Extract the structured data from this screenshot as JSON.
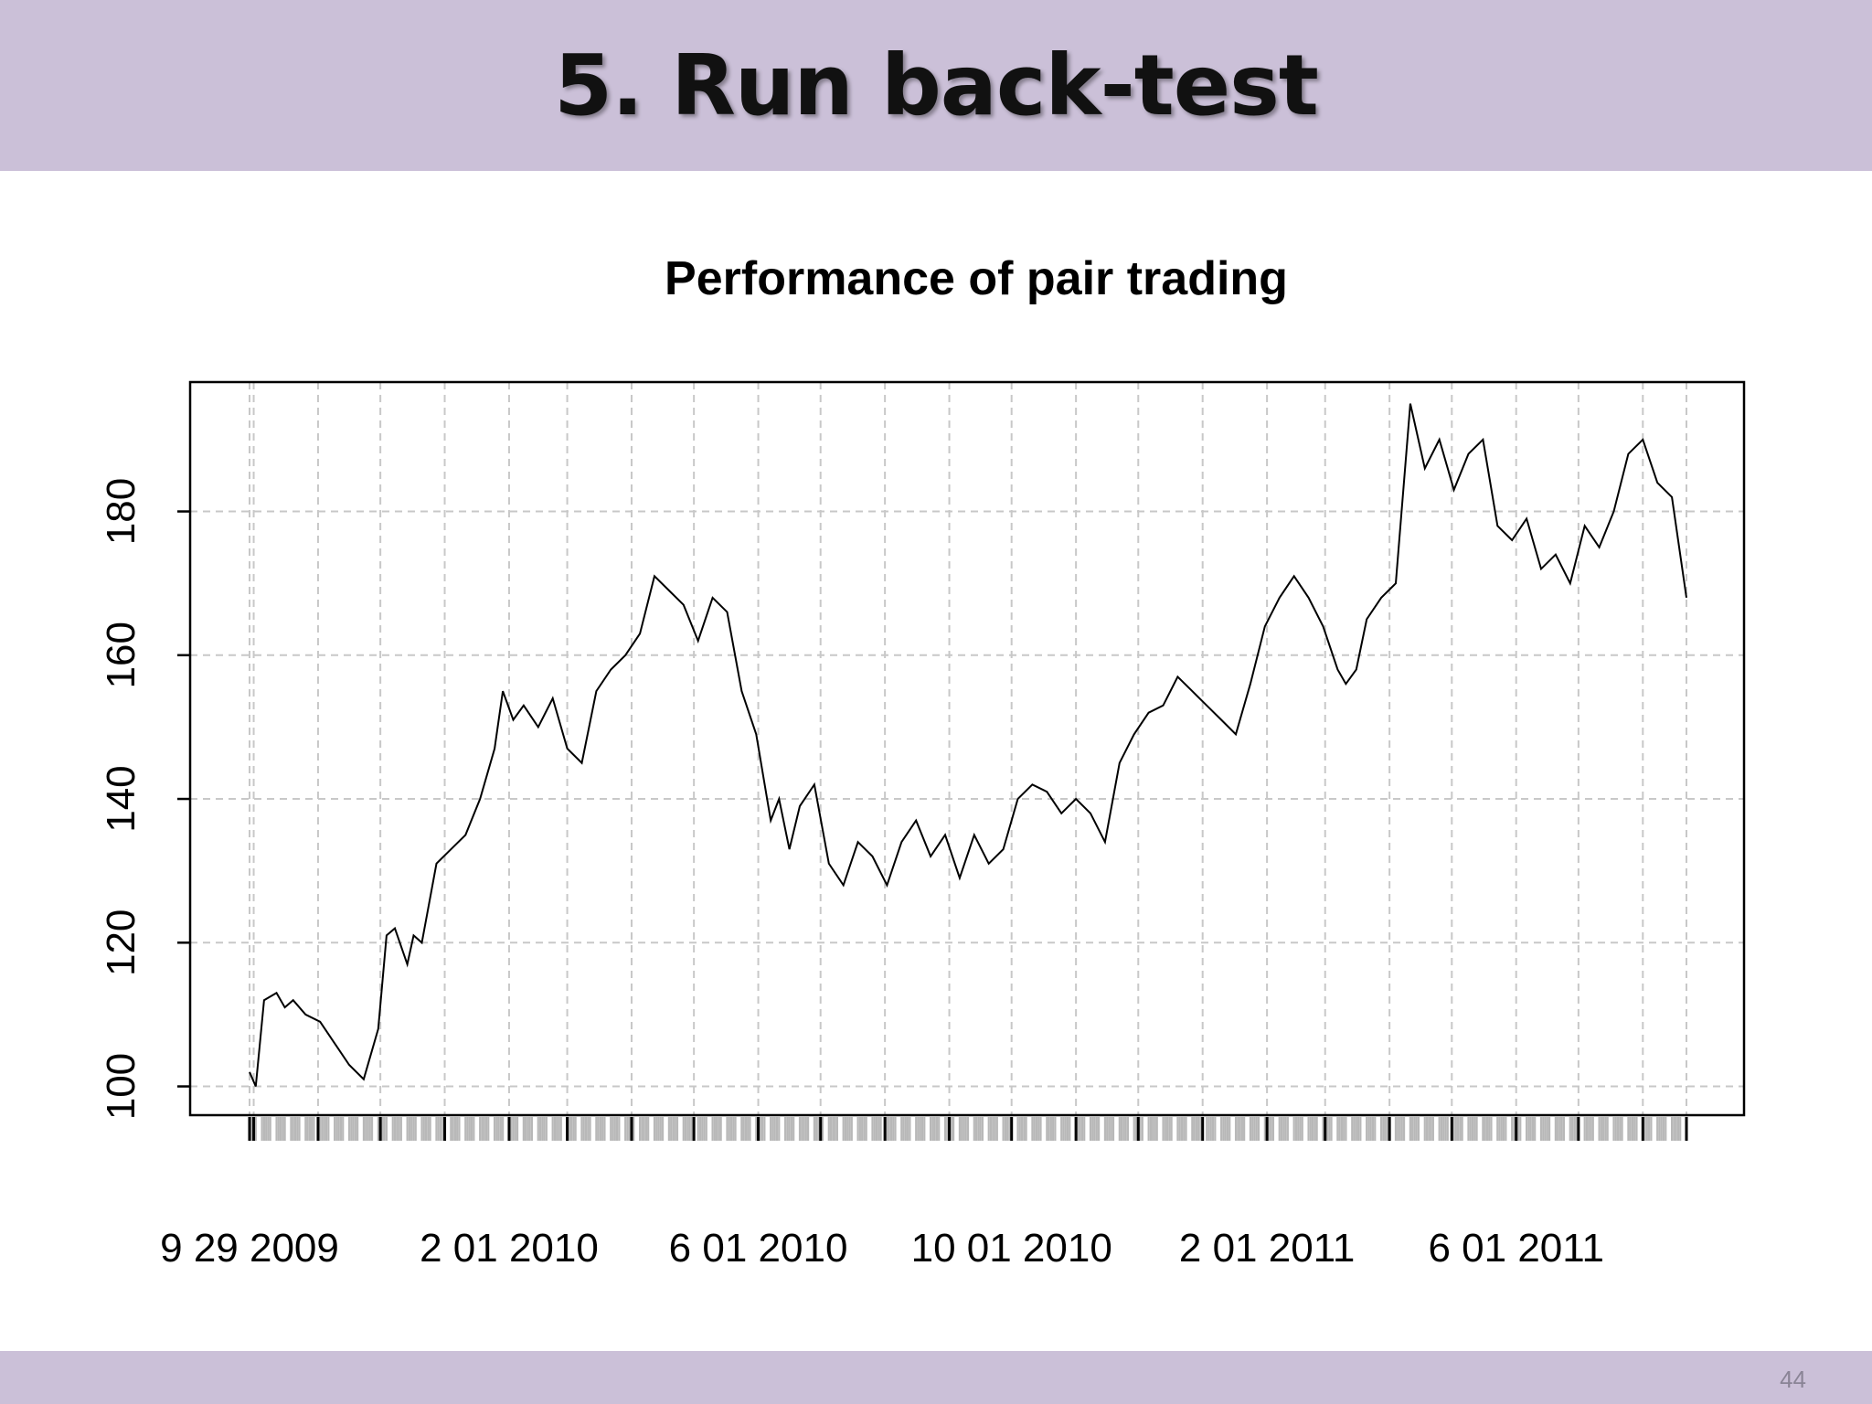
{
  "slide": {
    "title": "5. Run back-test",
    "page_number": "44",
    "band_color": "#cbc0d8"
  },
  "chart_data": {
    "type": "line",
    "title": "Performance of pair trading",
    "xlabel": "",
    "ylabel": "",
    "x_start": "2009-09-29",
    "x_end": "2011-08-22",
    "ylim": [
      96,
      198
    ],
    "y_ticks": [
      100,
      120,
      140,
      160,
      180
    ],
    "x_tick_labels": [
      {
        "date": "2009-09-29",
        "label": "9 29 2009"
      },
      {
        "date": "2010-02-01",
        "label": "2 01 2010"
      },
      {
        "date": "2010-06-01",
        "label": "6 01 2010"
      },
      {
        "date": "2010-10-01",
        "label": "10 01 2010"
      },
      {
        "date": "2011-02-01",
        "label": "2 01 2011"
      },
      {
        "date": "2011-06-01",
        "label": "6 01 2011"
      }
    ],
    "grid": true,
    "line_color": "#000000",
    "series": [
      {
        "x": [
          "2009-09-29",
          "2009-10-02",
          "2009-10-06",
          "2009-10-12",
          "2009-10-16",
          "2009-10-20",
          "2009-10-26",
          "2009-11-02",
          "2009-11-09",
          "2009-11-16",
          "2009-11-23",
          "2009-11-30",
          "2009-12-04",
          "2009-12-08",
          "2009-12-14",
          "2009-12-17",
          "2009-12-21",
          "2009-12-28",
          "2010-01-04",
          "2010-01-11",
          "2010-01-18",
          "2010-01-25",
          "2010-01-29",
          "2010-02-03",
          "2010-02-08",
          "2010-02-15",
          "2010-02-22",
          "2010-03-01",
          "2010-03-08",
          "2010-03-15",
          "2010-03-22",
          "2010-03-29",
          "2010-04-05",
          "2010-04-12",
          "2010-04-19",
          "2010-04-26",
          "2010-05-03",
          "2010-05-10",
          "2010-05-17",
          "2010-05-24",
          "2010-05-31",
          "2010-06-07",
          "2010-06-11",
          "2010-06-16",
          "2010-06-21",
          "2010-06-28",
          "2010-07-05",
          "2010-07-12",
          "2010-07-19",
          "2010-07-26",
          "2010-08-02",
          "2010-08-09",
          "2010-08-16",
          "2010-08-23",
          "2010-08-30",
          "2010-09-06",
          "2010-09-13",
          "2010-09-20",
          "2010-09-27",
          "2010-10-04",
          "2010-10-11",
          "2010-10-18",
          "2010-10-25",
          "2010-11-01",
          "2010-11-08",
          "2010-11-15",
          "2010-11-22",
          "2010-11-29",
          "2010-12-06",
          "2010-12-13",
          "2010-12-20",
          "2010-12-27",
          "2011-01-03",
          "2011-01-10",
          "2011-01-17",
          "2011-01-24",
          "2011-01-31",
          "2011-02-07",
          "2011-02-14",
          "2011-02-21",
          "2011-02-28",
          "2011-03-07",
          "2011-03-11",
          "2011-03-16",
          "2011-03-21",
          "2011-03-28",
          "2011-04-04",
          "2011-04-11",
          "2011-04-18",
          "2011-04-25",
          "2011-05-02",
          "2011-05-09",
          "2011-05-16",
          "2011-05-23",
          "2011-05-30",
          "2011-06-06",
          "2011-06-13",
          "2011-06-20",
          "2011-06-27",
          "2011-07-04",
          "2011-07-11",
          "2011-07-18",
          "2011-07-25",
          "2011-08-01",
          "2011-08-08",
          "2011-08-15",
          "2011-08-22"
        ],
        "values": [
          102,
          100,
          112,
          113,
          111,
          112,
          110,
          109,
          106,
          103,
          101,
          108,
          121,
          122,
          117,
          121,
          120,
          131,
          133,
          135,
          140,
          147,
          155,
          151,
          153,
          150,
          154,
          147,
          145,
          155,
          158,
          160,
          163,
          171,
          169,
          167,
          162,
          168,
          166,
          155,
          149,
          137,
          140,
          133,
          139,
          142,
          131,
          128,
          134,
          132,
          128,
          134,
          137,
          132,
          135,
          129,
          135,
          131,
          133,
          140,
          142,
          141,
          138,
          140,
          138,
          134,
          145,
          149,
          152,
          153,
          157,
          155,
          153,
          151,
          149,
          156,
          164,
          168,
          171,
          168,
          164,
          158,
          156,
          158,
          165,
          168,
          170,
          195,
          186,
          190,
          183,
          188,
          190,
          178,
          176,
          179,
          172,
          174,
          170,
          178,
          175,
          180,
          188,
          190,
          184,
          182,
          168
        ]
      }
    ]
  }
}
